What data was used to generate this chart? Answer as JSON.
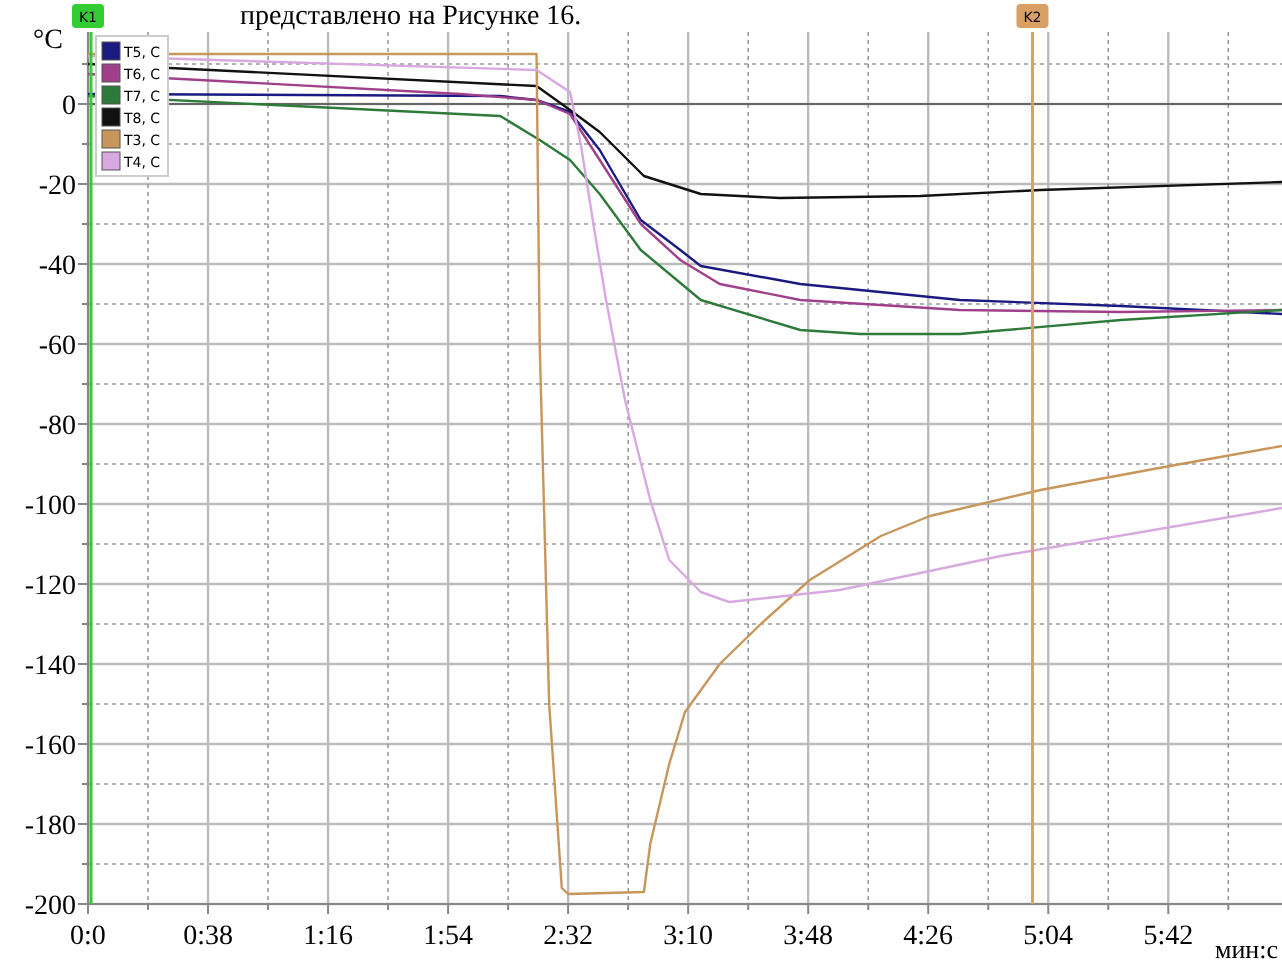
{
  "chart_data": {
    "type": "line",
    "ylabel": "°C",
    "xlabel": "мин:с",
    "annotations": [
      "представлено на Рисунке 16."
    ],
    "xlim": [
      0,
      378
    ],
    "ylim": [
      -200,
      18
    ],
    "xticks": [
      {
        "value": 0,
        "label": "0:0"
      },
      {
        "value": 19,
        "label": null
      },
      {
        "value": 38,
        "label": "0:38"
      },
      {
        "value": 57,
        "label": null
      },
      {
        "value": 76,
        "label": "1:16"
      },
      {
        "value": 95,
        "label": null
      },
      {
        "value": 114,
        "label": "1:54"
      },
      {
        "value": 133,
        "label": null
      },
      {
        "value": 152,
        "label": "2:32"
      },
      {
        "value": 171,
        "label": null
      },
      {
        "value": 190,
        "label": "3:10"
      },
      {
        "value": 209,
        "label": null
      },
      {
        "value": 228,
        "label": "3:48"
      },
      {
        "value": 247,
        "label": null
      },
      {
        "value": 266,
        "label": "4:26"
      },
      {
        "value": 285,
        "label": null
      },
      {
        "value": 304,
        "label": "5:04"
      },
      {
        "value": 323,
        "label": null
      },
      {
        "value": 342,
        "label": "5:42"
      },
      {
        "value": 361,
        "label": null
      }
    ],
    "yticks": [
      -200,
      {
        "value": -190,
        "label": null
      },
      -180,
      {
        "value": -170,
        "label": null
      },
      -160,
      {
        "value": -150,
        "label": null
      },
      -140,
      {
        "value": -130,
        "label": null
      },
      -120,
      {
        "value": -110,
        "label": null
      },
      -100,
      {
        "value": -90,
        "label": null
      },
      -80,
      {
        "value": -70,
        "label": null
      },
      -60,
      {
        "value": -50,
        "label": null
      },
      -40,
      {
        "value": -30,
        "label": null
      },
      -20,
      {
        "value": -10,
        "label": null
      },
      0,
      {
        "value": 10,
        "label": null
      }
    ],
    "grid": true,
    "legend": "top left",
    "marker": "none",
    "line_style": "solid",
    "ref_lines": [
      {
        "axis": "x",
        "value": 0,
        "label": "K1",
        "color": "#33cc33"
      },
      {
        "axis": "x",
        "value": 299,
        "label": "K2",
        "color": "#d9a066"
      }
    ],
    "series": [
      {
        "name": "T5, C",
        "color": "#1a1a80",
        "x": [
          0,
          130.5,
          142,
          152.6,
          162,
          175,
          187.5,
          194,
          225.5,
          276,
          327,
          378
        ],
        "values": [
          2.5,
          2,
          1,
          -2,
          -11.5,
          -29,
          -36.5,
          -40.5,
          -45,
          -49,
          -50.5,
          -52.5
        ]
      },
      {
        "name": "T6, C",
        "color": "#a0408a",
        "x": [
          0,
          118,
          142,
          152.6,
          162,
          175,
          187.5,
          200,
          225.5,
          276,
          327,
          378
        ],
        "values": [
          7.5,
          2.5,
          1,
          -2.5,
          -14,
          -30,
          -39,
          -45,
          -49,
          -51.5,
          -52,
          -51.5
        ]
      },
      {
        "name": "T7, C",
        "color": "#2e7a3a",
        "x": [
          0,
          130.5,
          143,
          152.6,
          162,
          175,
          194,
          225.5,
          244.5,
          276,
          327,
          378
        ],
        "values": [
          2,
          -3,
          -9,
          -14,
          -22.5,
          -36.5,
          -49,
          -56.5,
          -57.5,
          -57.5,
          -54,
          -51.5
        ]
      },
      {
        "name": "T8, C",
        "color": "#111111",
        "x": [
          0,
          142,
          152.6,
          162,
          176,
          194,
          219,
          263.5,
          301.5,
          378
        ],
        "values": [
          10,
          4.5,
          -1.5,
          -7,
          -18,
          -22.5,
          -23.5,
          -23,
          -21.5,
          -19.5
        ]
      },
      {
        "name": "T3, C",
        "color": "#c8965a",
        "x": [
          0,
          142,
          143,
          146,
          150,
          152,
          176,
          178,
          184,
          189,
          200,
          213,
          228.5,
          251,
          266.5,
          301.5,
          342.5,
          378
        ],
        "values": [
          12.5,
          12.5,
          -60,
          -150,
          -196,
          -197.5,
          -197,
          -185,
          -165,
          -152,
          -140,
          -130,
          -119,
          -108,
          -103,
          -96.5,
          -90.5,
          -85.5
        ]
      },
      {
        "name": "T4, C",
        "color": "#d8a8e0",
        "x": [
          0,
          142,
          152.6,
          156,
          160,
          164,
          170,
          178,
          184,
          194,
          203,
          238,
          289,
          378
        ],
        "values": [
          12,
          8.5,
          3,
          -10,
          -30,
          -49,
          -74,
          -99,
          -114,
          -122,
          -124.5,
          -121.5,
          -113,
          -101
        ]
      }
    ]
  }
}
